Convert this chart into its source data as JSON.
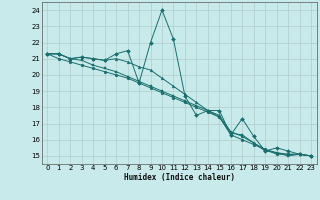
{
  "xlabel": "Humidex (Indice chaleur)",
  "bg_color": "#c8eaea",
  "grid_color": "#b0cccc",
  "line_color": "#1a6e6e",
  "xlim": [
    -0.5,
    23.5
  ],
  "ylim": [
    14.5,
    24.5
  ],
  "xticks": [
    0,
    1,
    2,
    3,
    4,
    5,
    6,
    7,
    8,
    9,
    10,
    11,
    12,
    13,
    14,
    15,
    16,
    17,
    18,
    19,
    20,
    21,
    22,
    23
  ],
  "yticks": [
    15,
    16,
    17,
    18,
    19,
    20,
    21,
    22,
    23,
    24
  ],
  "series": [
    {
      "x": [
        0,
        1,
        2,
        3,
        4,
        5,
        6,
        7,
        8,
        9,
        10,
        11,
        12,
        13,
        14,
        15,
        16,
        17,
        18,
        19,
        20,
        21,
        22,
        23
      ],
      "y": [
        21.3,
        21.3,
        21.0,
        21.1,
        21.0,
        20.9,
        21.3,
        21.5,
        19.5,
        22.0,
        24.0,
        22.2,
        18.7,
        17.5,
        17.8,
        17.8,
        16.3,
        17.3,
        16.2,
        15.3,
        15.5,
        15.3,
        15.1,
        15.0
      ]
    },
    {
      "x": [
        0,
        1,
        2,
        3,
        4,
        5,
        6,
        7,
        8,
        9,
        10,
        11,
        12,
        13,
        14,
        15,
        16,
        17,
        18,
        19,
        20,
        21,
        22,
        23
      ],
      "y": [
        21.3,
        21.3,
        21.0,
        21.1,
        21.0,
        20.9,
        21.0,
        20.8,
        20.5,
        20.3,
        19.8,
        19.3,
        18.8,
        18.3,
        17.8,
        17.5,
        16.5,
        16.2,
        15.8,
        15.4,
        15.2,
        15.1,
        15.1,
        15.0
      ]
    },
    {
      "x": [
        0,
        1,
        2,
        3,
        4,
        5,
        6,
        7,
        8,
        9,
        10,
        11,
        12,
        13,
        14,
        15,
        16,
        17,
        18,
        19,
        20,
        21,
        22,
        23
      ],
      "y": [
        21.3,
        21.3,
        21.0,
        20.9,
        20.6,
        20.4,
        20.2,
        19.9,
        19.6,
        19.3,
        19.0,
        18.7,
        18.4,
        18.1,
        17.8,
        17.4,
        16.4,
        16.3,
        15.8,
        15.3,
        15.2,
        15.0,
        15.1,
        15.0
      ]
    },
    {
      "x": [
        0,
        1,
        2,
        3,
        4,
        5,
        6,
        7,
        8,
        9,
        10,
        11,
        12,
        13,
        14,
        15,
        16,
        17,
        18,
        19,
        20,
        21,
        22,
        23
      ],
      "y": [
        21.3,
        21.0,
        20.8,
        20.6,
        20.4,
        20.2,
        20.0,
        19.8,
        19.5,
        19.2,
        18.9,
        18.6,
        18.3,
        18.0,
        17.7,
        17.4,
        16.3,
        16.0,
        15.7,
        15.4,
        15.1,
        15.1,
        15.1,
        15.0
      ]
    }
  ]
}
